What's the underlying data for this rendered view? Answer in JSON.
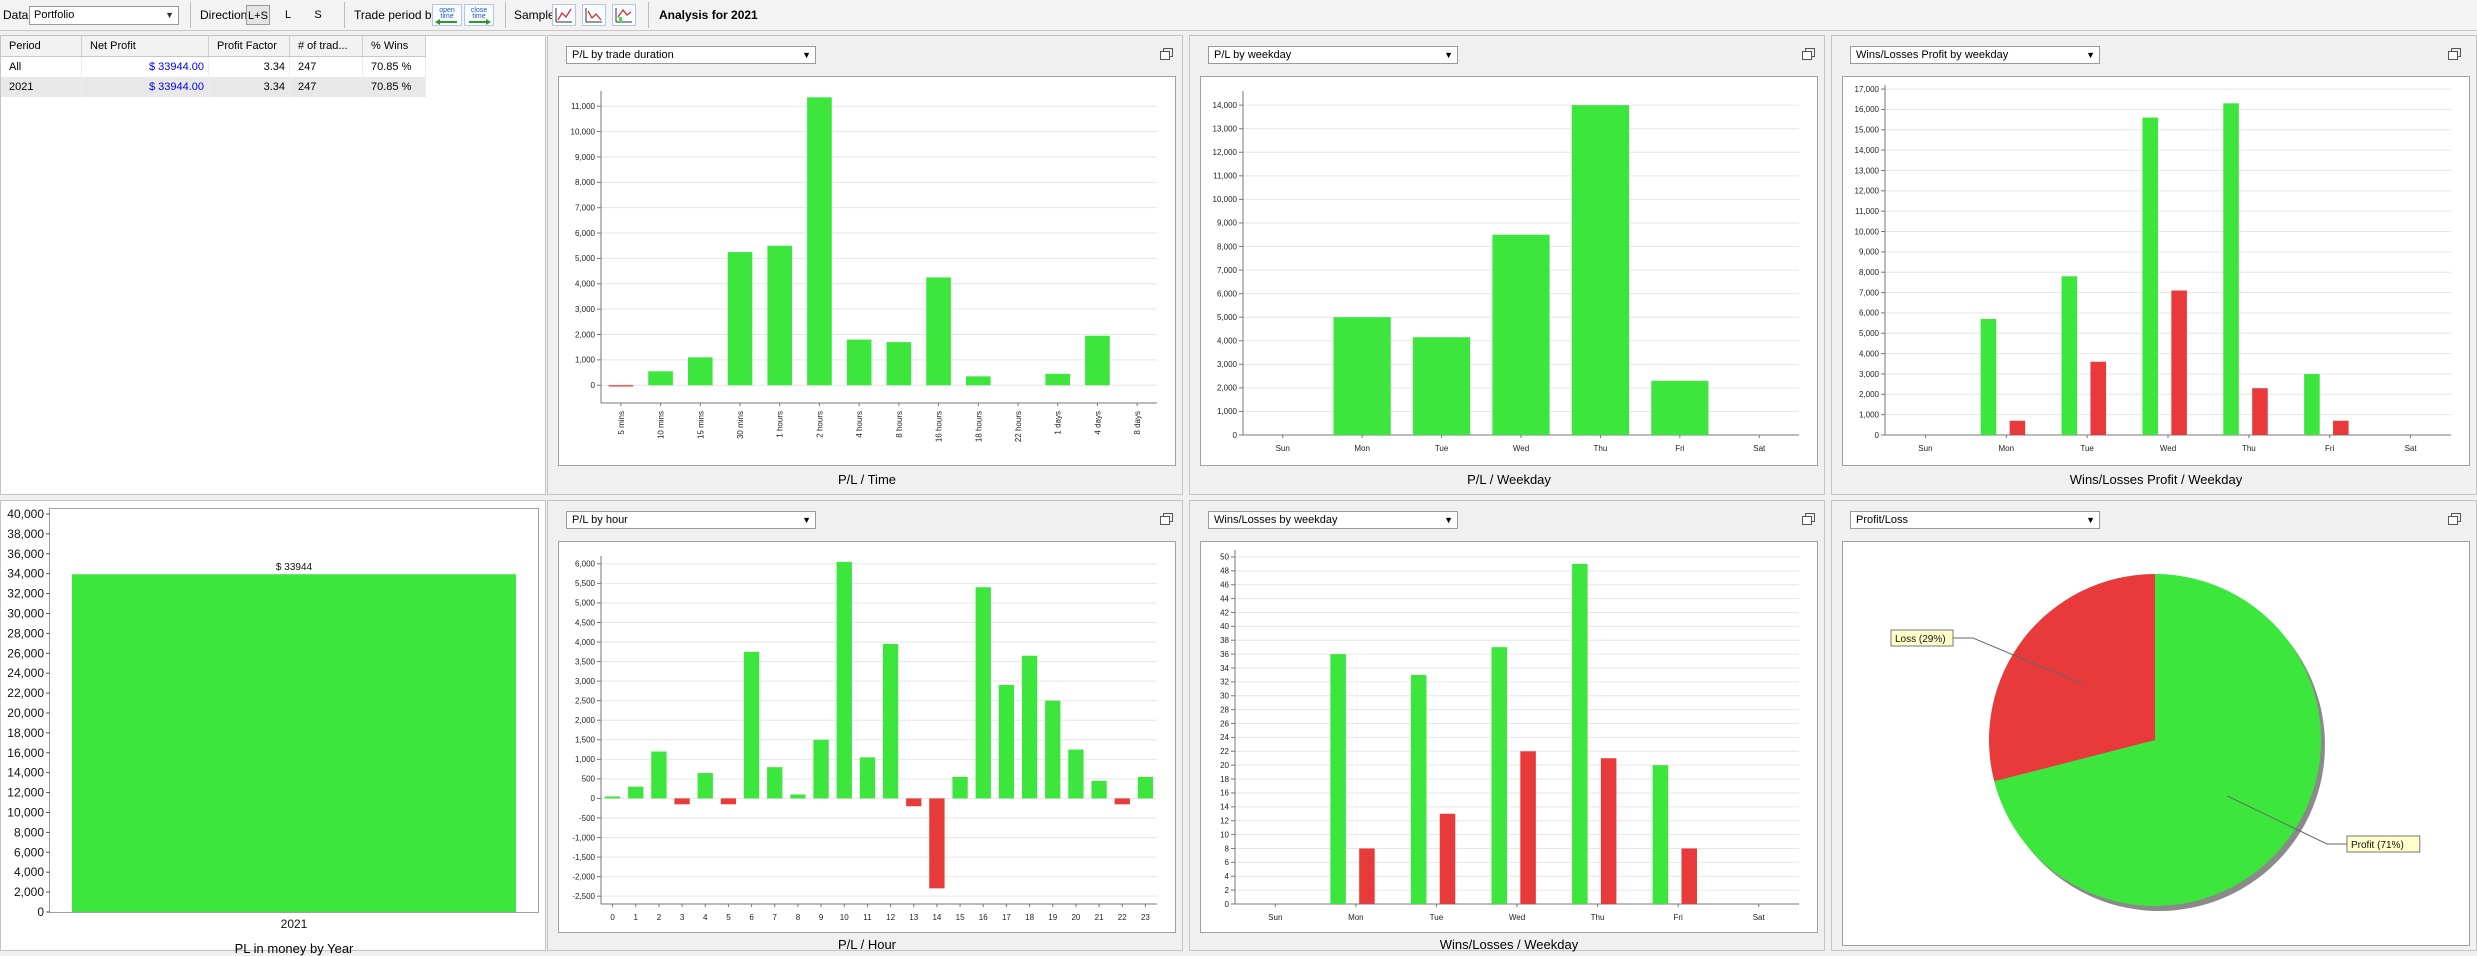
{
  "toolbar": {
    "data_label": "Data",
    "data_value": "Portfolio",
    "direction_label": "Direction",
    "direction_options": [
      "L+S",
      "L",
      "S"
    ],
    "trade_period_label": "Trade period by",
    "trade_period_icons": [
      "open-time-icon",
      "close-time-icon"
    ],
    "trade_period_icon_text": [
      "open time",
      "close time"
    ],
    "sample_label": "Sample",
    "sample_icons": [
      "sample-chart-icon-1",
      "sample-chart-icon-2",
      "sample-chart-icon-3"
    ],
    "analysis_title": "Analysis for 2021"
  },
  "table": {
    "columns": [
      "Period",
      "Net Profit",
      "Profit Factor",
      "# of trad...",
      "% Wins"
    ],
    "rows": [
      {
        "period": "All",
        "net_profit": "$ 33944.00",
        "profit_factor": "3.34",
        "trades": "247",
        "wins": "70.85 %"
      },
      {
        "period": "2021",
        "net_profit": "$ 33944.00",
        "profit_factor": "3.34",
        "trades": "247",
        "wins": "70.85 %"
      }
    ]
  },
  "panels": {
    "p1": {
      "select": "P/L by trade duration"
    },
    "p2": {
      "select": "P/L by weekday"
    },
    "p3": {
      "select": "Wins/Losses Profit by weekday"
    },
    "p5": {
      "select": "P/L by hour"
    },
    "p6": {
      "select": "Wins/Losses by weekday"
    },
    "p7": {
      "select": "Profit/Loss"
    }
  },
  "colors": {
    "profit": "#3ce63c",
    "loss": "#e83a3a"
  },
  "chart_data": [
    {
      "id": "c1",
      "type": "bar",
      "title": "P/L / Time",
      "categories": [
        "5 mins",
        "10 mins",
        "15 mins",
        "30 mins",
        "1 hours",
        "2 hours",
        "4 hours",
        "8 hours",
        "16 hours",
        "18 hours",
        "22 hours",
        "1 days",
        "4 days",
        "8 days"
      ],
      "values": [
        -50,
        550,
        1100,
        5250,
        5500,
        11350,
        1800,
        1700,
        4250,
        350,
        0,
        450,
        1950,
        0
      ],
      "ylim": [
        -700,
        11600
      ],
      "yticks": [
        0,
        1000,
        2000,
        3000,
        4000,
        5000,
        6000,
        7000,
        8000,
        9000,
        10000,
        11000
      ],
      "ytick_labels": [
        "0",
        "1,000",
        "2,000",
        "3,000",
        "4,000",
        "5,000",
        "6,000",
        "7,000",
        "8,000",
        "9,000",
        "10,000",
        "11,000"
      ]
    },
    {
      "id": "c2",
      "type": "bar",
      "title": "P/L / Weekday",
      "categories": [
        "Sun",
        "Mon",
        "Tue",
        "Wed",
        "Thu",
        "Fri",
        "Sat"
      ],
      "values": [
        0,
        5000,
        4150,
        8500,
        14000,
        2300,
        0
      ],
      "ylim": [
        0,
        14600
      ],
      "yticks": [
        0,
        1000,
        2000,
        3000,
        4000,
        5000,
        6000,
        7000,
        8000,
        9000,
        10000,
        11000,
        12000,
        13000,
        14000
      ],
      "ytick_labels": [
        "0",
        "1,000",
        "2,000",
        "3,000",
        "4,000",
        "5,000",
        "6,000",
        "7,000",
        "8,000",
        "9,000",
        "10,000",
        "11,000",
        "12,000",
        "13,000",
        "14,000"
      ]
    },
    {
      "id": "c3",
      "type": "bar",
      "title": "Wins/Losses Profit / Weekday",
      "categories": [
        "Sun",
        "Mon",
        "Tue",
        "Wed",
        "Thu",
        "Fri",
        "Sat"
      ],
      "series": [
        {
          "values": [
            0,
            5700,
            7800,
            15600,
            16300,
            3000,
            0
          ]
        },
        {
          "values": [
            0,
            700,
            3600,
            7100,
            2300,
            700,
            0
          ]
        }
      ],
      "ylim": [
        0,
        17200
      ],
      "yticks": [
        0,
        1000,
        2000,
        3000,
        4000,
        5000,
        6000,
        7000,
        8000,
        9000,
        10000,
        11000,
        12000,
        13000,
        14000,
        15000,
        16000,
        17000
      ],
      "ytick_labels": [
        "0",
        "1,000",
        "2,000",
        "3,000",
        "4,000",
        "5,000",
        "6,000",
        "7,000",
        "8,000",
        "9,000",
        "10,000",
        "11,000",
        "12,000",
        "13,000",
        "14,000",
        "15,000",
        "16,000",
        "17,000"
      ]
    },
    {
      "id": "c4",
      "type": "bar",
      "title": "PL in money by Year",
      "categories": [
        "2021"
      ],
      "values": [
        33944
      ],
      "data_labels": [
        "$ 33944"
      ],
      "ylim": [
        0,
        40500
      ],
      "yticks": [
        0,
        2000,
        4000,
        6000,
        8000,
        10000,
        12000,
        14000,
        16000,
        18000,
        20000,
        22000,
        24000,
        26000,
        28000,
        30000,
        32000,
        34000,
        36000,
        38000,
        40000
      ],
      "ytick_labels": [
        "0",
        "2,000",
        "4,000",
        "6,000",
        "8,000",
        "10,000",
        "12,000",
        "14,000",
        "16,000",
        "18,000",
        "20,000",
        "22,000",
        "24,000",
        "26,000",
        "28,000",
        "30,000",
        "32,000",
        "34,000",
        "36,000",
        "38,000",
        "40,000"
      ]
    },
    {
      "id": "c5",
      "type": "bar",
      "title": "P/L / Hour",
      "categories": [
        "0",
        "1",
        "2",
        "3",
        "4",
        "5",
        "6",
        "7",
        "8",
        "9",
        "10",
        "11",
        "12",
        "13",
        "14",
        "15",
        "16",
        "17",
        "18",
        "19",
        "20",
        "21",
        "22",
        "23"
      ],
      "values": [
        50,
        300,
        1200,
        -150,
        650,
        -150,
        3750,
        800,
        100,
        1500,
        6050,
        1050,
        3950,
        -200,
        -2300,
        550,
        5400,
        2900,
        3650,
        2500,
        1250,
        450,
        -150,
        550
      ],
      "ylim": [
        -2700,
        6200
      ],
      "yticks": [
        -2500,
        -2000,
        -1500,
        -1000,
        -500,
        0,
        500,
        1000,
        1500,
        2000,
        2500,
        3000,
        3500,
        4000,
        4500,
        5000,
        5500,
        6000
      ],
      "ytick_labels": [
        "-2,500",
        "-2,000",
        "-1,500",
        "-1,000",
        "-500",
        "0",
        "500",
        "1,000",
        "1,500",
        "2,000",
        "2,500",
        "3,000",
        "3,500",
        "4,000",
        "4,500",
        "5,000",
        "5,500",
        "6,000"
      ]
    },
    {
      "id": "c6",
      "type": "bar",
      "title": "Wins/Losses / Weekday",
      "categories": [
        "Sun",
        "Mon",
        "Tue",
        "Wed",
        "Thu",
        "Fri",
        "Sat"
      ],
      "series": [
        {
          "values": [
            0,
            36,
            33,
            37,
            49,
            20,
            0
          ]
        },
        {
          "values": [
            0,
            8,
            13,
            22,
            21,
            8,
            0
          ]
        }
      ],
      "ylim": [
        0,
        51
      ],
      "yticks": [
        0,
        2,
        4,
        6,
        8,
        10,
        12,
        14,
        16,
        18,
        20,
        22,
        24,
        26,
        28,
        30,
        32,
        34,
        36,
        38,
        40,
        42,
        44,
        46,
        48,
        50
      ],
      "ytick_labels": [
        "0",
        "2",
        "4",
        "6",
        "8",
        "10",
        "12",
        "14",
        "16",
        "18",
        "20",
        "22",
        "24",
        "26",
        "28",
        "30",
        "32",
        "34",
        "36",
        "38",
        "40",
        "42",
        "44",
        "46",
        "48",
        "50"
      ]
    },
    {
      "id": "c7",
      "type": "pie",
      "slices": [
        {
          "label": "Profit (71%)",
          "value": 71
        },
        {
          "label": "Loss (29%)",
          "value": 29
        }
      ]
    }
  ]
}
